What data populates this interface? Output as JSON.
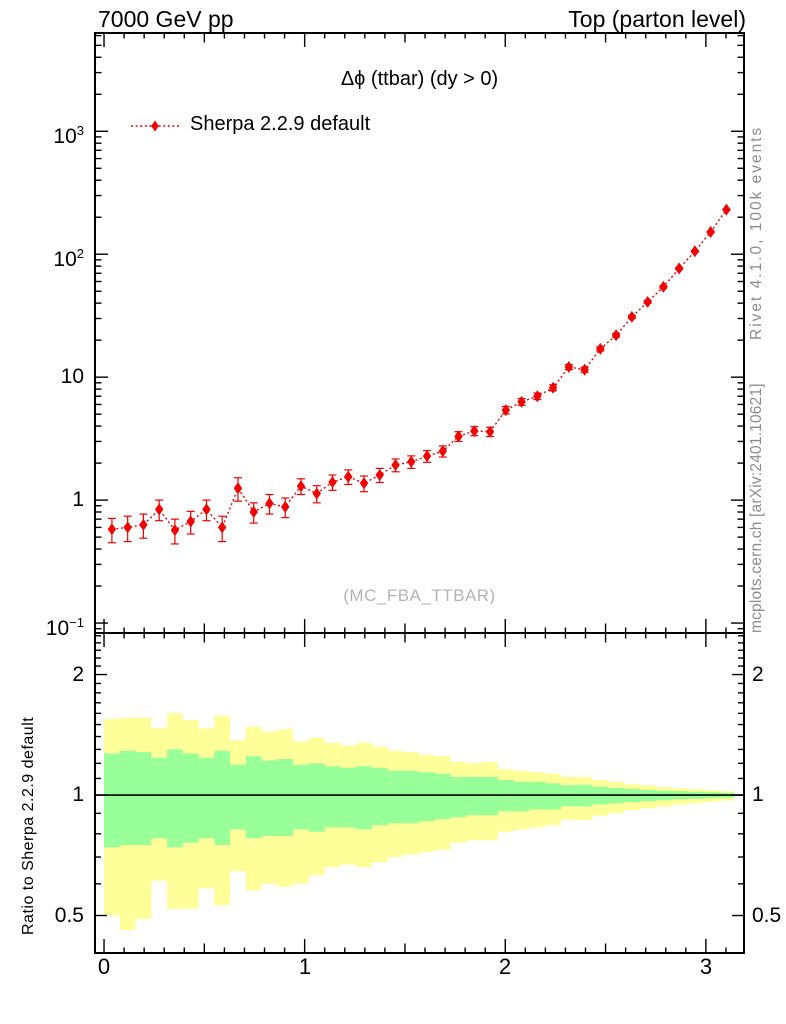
{
  "header": {
    "left": "7000 GeV pp",
    "right": "Top (parton level)"
  },
  "legend": {
    "label": "Sherpa 2.2.9 default"
  },
  "watermark": "(MC_FBA_TTBAR)",
  "side_labels": {
    "top_right": "Rivet 4.1.0,  100k events",
    "bottom_right": "mcplots.cern.ch [arXiv:2401.10621]"
  },
  "ratio_ylabel": "Ratio to Sherpa 2.2.9 default",
  "colors": {
    "series": "#f20000",
    "band_yellow": "#ffff99",
    "band_green": "#99ff99",
    "frame": "#000000",
    "gray_text": "#8c8c8c",
    "watermark_text": "#b4b4b4"
  },
  "chart_data": {
    "type": "scatter",
    "title": "Δϕ (ttbar) (dy > 0)",
    "xlabel": "",
    "ylabel": "",
    "xlim": [
      -0.045,
      3.19
    ],
    "x_ticks": {
      "major": [
        0,
        1,
        2,
        3
      ],
      "labels": [
        "0",
        "1",
        "2",
        "3"
      ],
      "medium": [
        0.5,
        1.5,
        2.5
      ],
      "minor_step": 0.1,
      "minor_max": 3.1
    },
    "main_panel": {
      "ylog": true,
      "ylim": [
        0.083,
        6300
      ],
      "yticks": [
        {
          "v": 1000,
          "label": "10^3"
        },
        {
          "v": 100,
          "label": "10^2"
        },
        {
          "v": 10,
          "label": "10"
        },
        {
          "v": 1,
          "label": "1"
        },
        {
          "v": 0.1,
          "label": "10^-1"
        }
      ]
    },
    "series": [
      {
        "name": "Sherpa 2.2.9 default",
        "bins": 40,
        "bin_width": 0.0785398,
        "x": [
          0.0393,
          0.1178,
          0.1963,
          0.2749,
          0.3534,
          0.432,
          0.5105,
          0.589,
          0.6676,
          0.7461,
          0.8247,
          0.9032,
          0.9817,
          1.0603,
          1.1388,
          1.2174,
          1.2959,
          1.3744,
          1.453,
          1.5315,
          1.6101,
          1.6886,
          1.7671,
          1.8457,
          1.9242,
          2.0028,
          2.0813,
          2.1598,
          2.2384,
          2.3169,
          2.3955,
          2.474,
          2.5525,
          2.6311,
          2.7096,
          2.7882,
          2.8667,
          2.9452,
          3.0238,
          3.1023
        ],
        "y": [
          0.58,
          0.6,
          0.63,
          0.84,
          0.57,
          0.67,
          0.84,
          0.6,
          1.25,
          0.8,
          0.94,
          0.88,
          1.3,
          1.13,
          1.4,
          1.55,
          1.37,
          1.6,
          1.93,
          2.05,
          2.28,
          2.5,
          3.3,
          3.65,
          3.6,
          5.4,
          6.3,
          7.0,
          8.2,
          12.1,
          11.5,
          17.0,
          21.9,
          30.9,
          40.9,
          54.2,
          76.6,
          105.7,
          151.7,
          230.7
        ],
        "yerr": [
          0.13,
          0.14,
          0.14,
          0.16,
          0.13,
          0.14,
          0.16,
          0.14,
          0.27,
          0.15,
          0.17,
          0.16,
          0.19,
          0.18,
          0.2,
          0.21,
          0.2,
          0.21,
          0.23,
          0.24,
          0.25,
          0.26,
          0.3,
          0.31,
          0.31,
          0.38,
          0.4,
          0.43,
          0.46,
          0.56,
          0.54,
          0.66,
          0.75,
          0.87,
          1.0,
          1.2,
          1.4,
          1.6,
          2.0,
          2.3
        ]
      }
    ],
    "ratio_panel": {
      "ylog": true,
      "ylim": [
        0.403,
        2.54
      ],
      "ref_line": 1,
      "yticks": [
        {
          "v": 2,
          "label": "2"
        },
        {
          "v": 1,
          "label": "1"
        },
        {
          "v": 0.5,
          "label": "0.5"
        }
      ],
      "bands": {
        "x_min": 0,
        "x_max": 3.14159,
        "yellow_top": [
          1.55,
          1.56,
          1.56,
          1.47,
          1.6,
          1.54,
          1.47,
          1.58,
          1.37,
          1.48,
          1.44,
          1.46,
          1.36,
          1.39,
          1.35,
          1.33,
          1.35,
          1.32,
          1.29,
          1.28,
          1.26,
          1.25,
          1.21,
          1.2,
          1.21,
          1.16,
          1.15,
          1.14,
          1.13,
          1.11,
          1.11,
          1.09,
          1.08,
          1.065,
          1.057,
          1.049,
          1.041,
          1.035,
          1.029,
          1.023
        ],
        "yellow_bottom": [
          0.5,
          0.46,
          0.49,
          0.61,
          0.52,
          0.52,
          0.585,
          0.53,
          0.645,
          0.578,
          0.6,
          0.59,
          0.6,
          0.63,
          0.66,
          0.67,
          0.66,
          0.68,
          0.7,
          0.71,
          0.72,
          0.73,
          0.76,
          0.77,
          0.77,
          0.81,
          0.82,
          0.83,
          0.84,
          0.868,
          0.866,
          0.888,
          0.9,
          0.916,
          0.926,
          0.935,
          0.946,
          0.953,
          0.961,
          0.968
        ],
        "green_top": [
          1.27,
          1.29,
          1.28,
          1.24,
          1.3,
          1.27,
          1.24,
          1.29,
          1.19,
          1.25,
          1.22,
          1.23,
          1.19,
          1.2,
          1.18,
          1.17,
          1.18,
          1.17,
          1.15,
          1.15,
          1.14,
          1.13,
          1.11,
          1.11,
          1.11,
          1.09,
          1.08,
          1.08,
          1.07,
          1.058,
          1.06,
          1.049,
          1.043,
          1.036,
          1.031,
          1.027,
          1.023,
          1.019,
          1.016,
          1.013
        ],
        "green_bottom": [
          0.74,
          0.75,
          0.75,
          0.78,
          0.74,
          0.76,
          0.78,
          0.75,
          0.82,
          0.78,
          0.79,
          0.79,
          0.82,
          0.81,
          0.83,
          0.83,
          0.82,
          0.84,
          0.85,
          0.85,
          0.86,
          0.87,
          0.88,
          0.89,
          0.89,
          0.91,
          0.91,
          0.92,
          0.92,
          0.937,
          0.936,
          0.947,
          0.953,
          0.96,
          0.965,
          0.97,
          0.975,
          0.978,
          0.982,
          0.985
        ]
      }
    }
  }
}
